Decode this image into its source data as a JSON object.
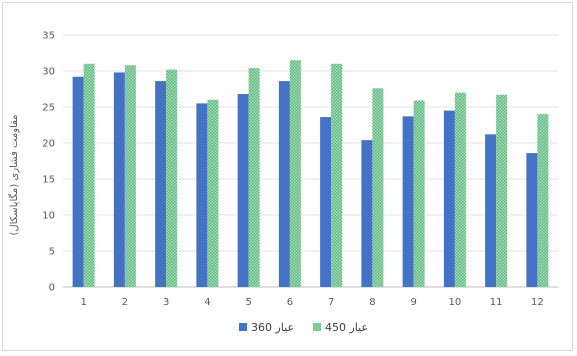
{
  "chart_data": {
    "type": "bar",
    "title": "",
    "xlabel": "",
    "ylabel": "مقاومت فشاری (مگاپاسکال)",
    "categories": [
      "1",
      "2",
      "3",
      "4",
      "5",
      "6",
      "7",
      "8",
      "9",
      "10",
      "11",
      "12"
    ],
    "ylim": [
      0,
      35
    ],
    "yticks": [
      "0",
      "5",
      "10",
      "15",
      "20",
      "25",
      "30",
      "35"
    ],
    "grid": true,
    "legend_position": "bottom",
    "series": [
      {
        "name": "عیار 360",
        "color": "#4472c4",
        "values": [
          29.2,
          29.8,
          28.6,
          25.5,
          26.8,
          28.6,
          23.6,
          20.4,
          23.7,
          24.5,
          21.2,
          18.6
        ]
      },
      {
        "name": "عیار 450",
        "color": "#70c28f",
        "values": [
          31.0,
          30.8,
          30.2,
          26.0,
          30.4,
          31.5,
          31.0,
          27.6,
          25.9,
          27.0,
          26.7,
          24.0
        ]
      }
    ]
  }
}
